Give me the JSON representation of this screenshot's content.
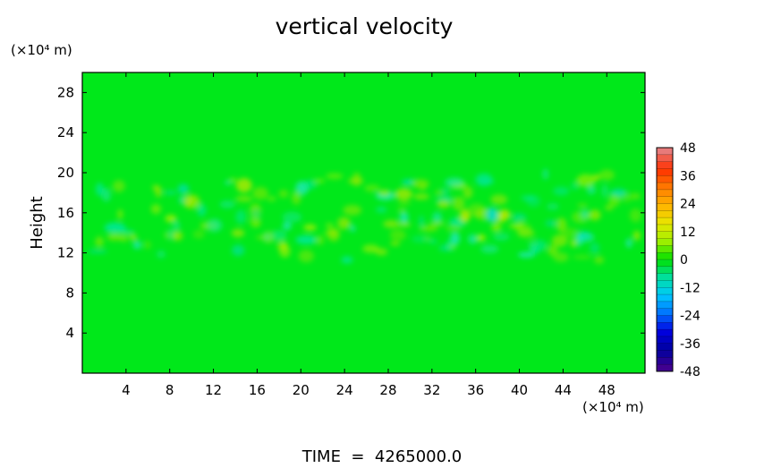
{
  "chart_data": {
    "type": "heatmap",
    "title": "vertical velocity",
    "ylabel": "Height",
    "y_unit_label": "(×10⁴ m)",
    "x_unit_label": "(×10⁴ m)",
    "xlabel": "",
    "x_ticks": [
      4,
      8,
      12,
      16,
      20,
      24,
      28,
      32,
      36,
      40,
      44,
      48
    ],
    "y_ticks": [
      4,
      8,
      12,
      16,
      20,
      24,
      28
    ],
    "xlim": [
      0,
      51.5
    ],
    "ylim": [
      0,
      30
    ],
    "colorbar": {
      "ticks": [
        48,
        36,
        24,
        12,
        0,
        -12,
        -24,
        -36,
        -48
      ],
      "range": [
        -48,
        48
      ],
      "colors": [
        "#e87a7a",
        "#ff3000",
        "#ff7a00",
        "#ffb400",
        "#e8e600",
        "#a0f000",
        "#00e000",
        "#00e0a0",
        "#00c8ff",
        "#0070ff",
        "#0000e0",
        "#0000a0",
        "#400090"
      ]
    },
    "field_summary": "near-zero values everywhere; weak positive and negative cells concentrated between heights 12 and 19",
    "footer": "TIME  =  4265000.0"
  }
}
